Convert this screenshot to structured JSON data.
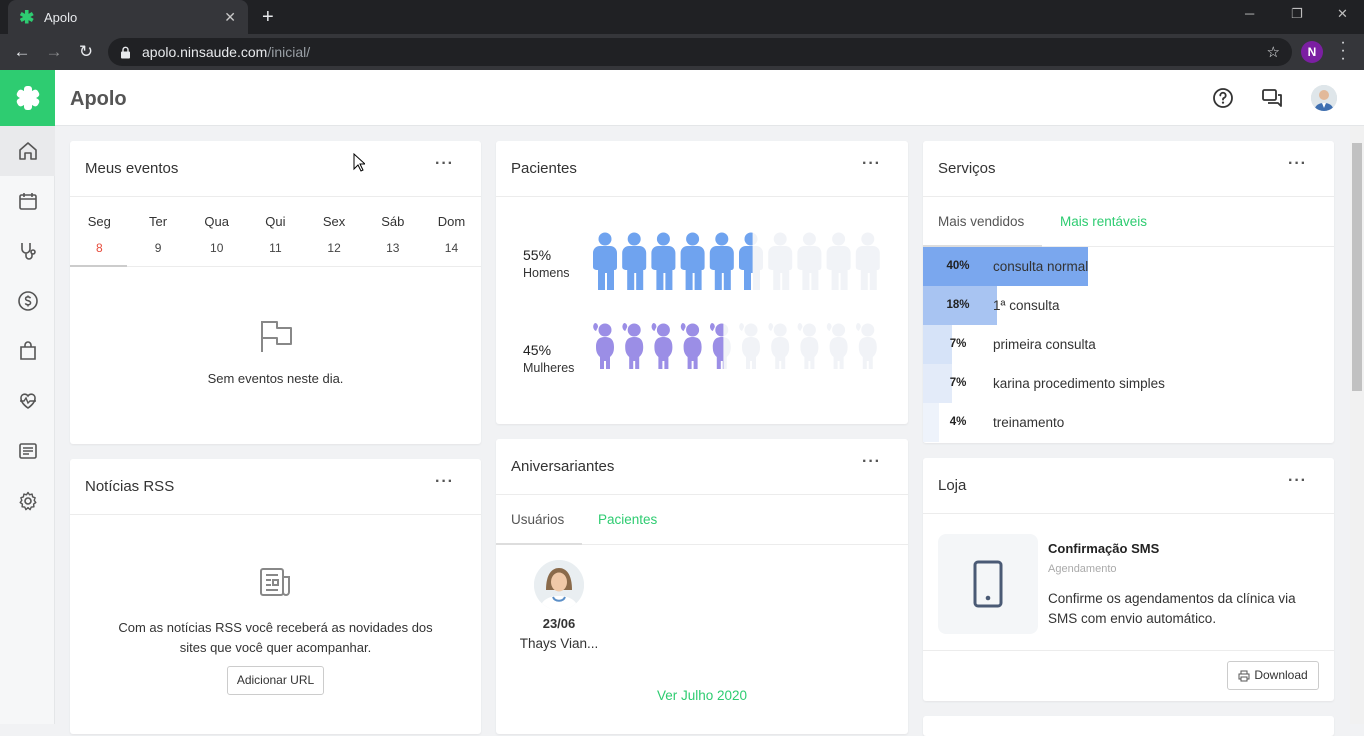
{
  "browser": {
    "tab_title": "Apolo",
    "url_host": "apolo.ninsaude.com",
    "url_path": "/inicial/",
    "profile_initial": "N"
  },
  "app": {
    "title": "Apolo",
    "brand_color": "#2ecc71"
  },
  "sidebar": {
    "items": [
      {
        "icon": "home-icon",
        "active": true
      },
      {
        "icon": "calendar-icon",
        "active": false
      },
      {
        "icon": "stethoscope-icon",
        "active": false
      },
      {
        "icon": "dollar-icon",
        "active": false
      },
      {
        "icon": "shopping-bag-icon",
        "active": false
      },
      {
        "icon": "heartbeat-icon",
        "active": false
      },
      {
        "icon": "document-list-icon",
        "active": false
      },
      {
        "icon": "gear-icon",
        "active": false
      }
    ]
  },
  "header_icons": [
    "help-icon",
    "chat-icon",
    "user-avatar"
  ],
  "eventos": {
    "title": "Meus eventos",
    "more": "···",
    "days": [
      {
        "name": "Seg",
        "date": "8",
        "selected": true
      },
      {
        "name": "Ter",
        "date": "9"
      },
      {
        "name": "Qua",
        "date": "10"
      },
      {
        "name": "Qui",
        "date": "11"
      },
      {
        "name": "Sex",
        "date": "12"
      },
      {
        "name": "Sáb",
        "date": "13"
      },
      {
        "name": "Dom",
        "date": "14"
      }
    ],
    "empty": "Sem eventos neste dia."
  },
  "rss": {
    "title": "Notícias RSS",
    "more": "···",
    "text_line1": "Com as notícias RSS você receberá as novidades dos",
    "text_line2": "sites que você quer acompanhar.",
    "button": "Adicionar URL"
  },
  "pacientes": {
    "title": "Pacientes",
    "more": "···",
    "men_pct": "55%",
    "men_label": "Homens",
    "men_fraction": 0.55,
    "women_pct": "45%",
    "women_label": "Mulheres",
    "women_fraction": 0.45,
    "men_color": "#6fa3ef",
    "women_color": "#9b8ee6"
  },
  "aniversariantes": {
    "title": "Aniversariantes",
    "more": "···",
    "tabs": [
      "Usuários",
      "Pacientes"
    ],
    "active_tab": "Pacientes",
    "person_date": "23/06",
    "person_name": "Thays Vian...",
    "link": "Ver Julho 2020"
  },
  "servicos": {
    "title": "Serviços",
    "more": "···",
    "tabs": [
      "Mais vendidos",
      "Mais rentáveis"
    ],
    "active_tab": "Mais rentáveis",
    "rows": [
      {
        "pct": "40%",
        "name": "consulta normal",
        "value": 40,
        "color": "#7aa7ee"
      },
      {
        "pct": "18%",
        "name": "1ª consulta",
        "value": 18,
        "color": "#a8c4f2"
      },
      {
        "pct": "7%",
        "name": "primeira consulta",
        "value": 7,
        "color": "#d6e3f8"
      },
      {
        "pct": "7%",
        "name": "karina procedimento simples",
        "value": 7,
        "color": "#e3ebf9"
      },
      {
        "pct": "4%",
        "name": "treinamento",
        "value": 4,
        "color": "#eef3fb"
      }
    ]
  },
  "loja": {
    "title": "Loja",
    "more": "···",
    "product_title": "Confirmação SMS",
    "product_category": "Agendamento",
    "desc_line1": "Confirme os agendamentos da clínica via",
    "desc_line2": "SMS com envio automático.",
    "button": "Download"
  }
}
